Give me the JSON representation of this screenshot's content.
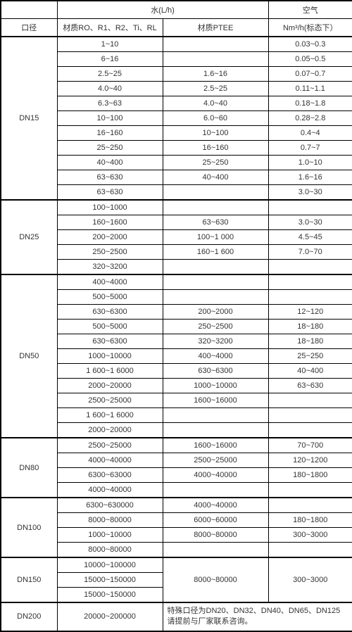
{
  "headers": {
    "caliber": "口径",
    "water": "水(L/h)",
    "water_col1": "材质RO、R1、R2、Ti、RL",
    "water_col2": "材质PTEE",
    "air": "空气",
    "air_sub": "Nm³/h(标态下）"
  },
  "groups": [
    {
      "name": "DN15",
      "rows": [
        {
          "c2": "1~10",
          "c3": "",
          "c4": "0.03~0.3"
        },
        {
          "c2": "6~16",
          "c3": "",
          "c4": "0.05~0.5"
        },
        {
          "c2": "2.5~25",
          "c3": "1.6~16",
          "c4": "0.07~0.7"
        },
        {
          "c2": "4.0~40",
          "c3": "2.5~25",
          "c4": "0.11~1.1"
        },
        {
          "c2": "6.3~63",
          "c3": "4.0~40",
          "c4": "0.18~1.8"
        },
        {
          "c2": "10~100",
          "c3": "6.0~60",
          "c4": "0.28~2.8"
        },
        {
          "c2": "16~160",
          "c3": "10~100",
          "c4": "0.4~4"
        },
        {
          "c2": "25~250",
          "c3": "16~160",
          "c4": "0.7~7"
        },
        {
          "c2": "40~400",
          "c3": "25~250",
          "c4": "1.0~10"
        },
        {
          "c2": "63~630",
          "c3": "40~400",
          "c4": "1.6~16"
        },
        {
          "c2": "63~630",
          "c3": "",
          "c4": "3.0~30"
        }
      ]
    },
    {
      "name": "DN25",
      "rows": [
        {
          "c2": "100~1000",
          "c3": "",
          "c4": ""
        },
        {
          "c2": "160~1600",
          "c3": "63~630",
          "c4": "3.0~30"
        },
        {
          "c2": "200~2000",
          "c3": "100~1 000",
          "c4": "4.5~45"
        },
        {
          "c2": "250~2500",
          "c3": "160~1 600",
          "c4": "7.0~70"
        },
        {
          "c2": "320~3200",
          "c3": "",
          "c4": ""
        }
      ]
    },
    {
      "name": "DN50",
      "rows": [
        {
          "c2": "400~4000",
          "c3": "",
          "c4": ""
        },
        {
          "c2": "500~5000",
          "c3": "",
          "c4": ""
        },
        {
          "c2": "630~6300",
          "c3": "200~2000",
          "c4": "12~120"
        },
        {
          "c2": "500~5000",
          "c3": "250~2500",
          "c4": "18~180"
        },
        {
          "c2": "630~6300",
          "c3": "320~3200",
          "c4": "18~180"
        },
        {
          "c2": "1000~10000",
          "c3": "400~4000",
          "c4": "25~250"
        },
        {
          "c2": "1 600~1 6000",
          "c3": "630~6300",
          "c4": "40~400"
        },
        {
          "c2": "2000~20000",
          "c3": "1000~10000",
          "c4": "63~630"
        },
        {
          "c2": "2500~25000",
          "c3": "1600~16000",
          "c4": ""
        },
        {
          "c2": "1 600~1 6000",
          "c3": "",
          "c4": ""
        },
        {
          "c2": "2000~20000",
          "c3": "",
          "c4": ""
        }
      ]
    },
    {
      "name": "DN80",
      "rows": [
        {
          "c2": "2500~25000",
          "c3": "1600~16000",
          "c4": "70~700"
        },
        {
          "c2": "4000~40000",
          "c3": "2500~25000",
          "c4": "120~1200"
        },
        {
          "c2": "6300~63000",
          "c3": "4000~40000",
          "c4": "180~1800"
        },
        {
          "c2": "4000~40000",
          "c3": "",
          "c4": ""
        }
      ]
    },
    {
      "name": "DN100",
      "rows": [
        {
          "c2": "6300~630000",
          "c3": "4000~40000",
          "c4": ""
        },
        {
          "c2": "8000~80000",
          "c3": "6000~60000",
          "c4": "180~1800"
        },
        {
          "c2": "1000~10000",
          "c3": "8000~80000",
          "c4": "300~3000"
        },
        {
          "c2": "8000~80000",
          "c3": "",
          "c4": ""
        }
      ]
    },
    {
      "name": "DN150",
      "rows": [
        {
          "c2": "10000~100000",
          "c3": "",
          "c4": "",
          "merge_c3": "8000~80000",
          "merge_c4": "300~3000"
        },
        {
          "c2": "15000~150000",
          "c3": null,
          "c4": null
        },
        {
          "c2": "15000~150000",
          "c3": null,
          "c4": null
        }
      ]
    }
  ],
  "dn200": {
    "name": "DN200",
    "c2": "20000~200000",
    "note": "特殊口径为DN20、DN32、DN40、DN65、DN125请提前与厂家联系咨询。"
  }
}
